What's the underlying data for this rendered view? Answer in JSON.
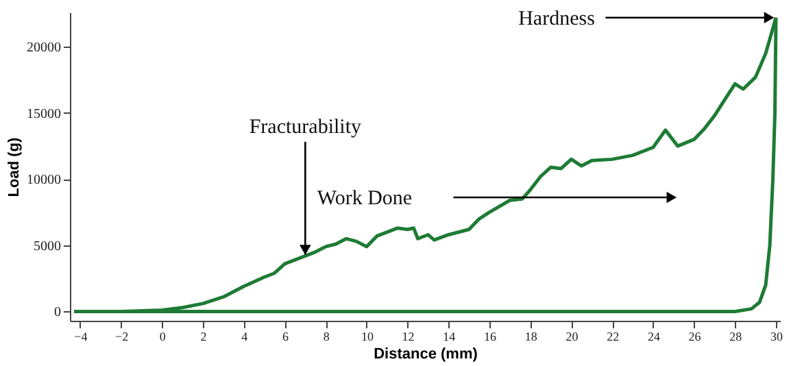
{
  "chart_data": {
    "type": "line",
    "xlabel": "Distance (mm)",
    "ylabel": "Load (g)",
    "xlim": [
      -4.5,
      30.2
    ],
    "ylim": [
      -700,
      22600
    ],
    "xticks": [
      -4,
      -2,
      0,
      2,
      4,
      6,
      8,
      10,
      12,
      14,
      16,
      18,
      20,
      22,
      24,
      26,
      28,
      30
    ],
    "yticks": [
      0,
      5000,
      10000,
      15000,
      20000
    ],
    "grid": false,
    "line_style": "solid",
    "annotations": [
      {
        "text": "Hardness",
        "x": 30,
        "y": 22200
      },
      {
        "text": "Fracturability",
        "x": 7,
        "y": 4200
      },
      "Work Done"
    ],
    "series": [
      {
        "color": "#1e7b34",
        "x": [
          -4.3,
          -2,
          0,
          1,
          2,
          3,
          4,
          5,
          5.5,
          6,
          6.5,
          7,
          7.5,
          8,
          8.5,
          9,
          9.5,
          10,
          10.5,
          11,
          11.5,
          12,
          12.3,
          12.5,
          13,
          13.3,
          14,
          15,
          15.5,
          16,
          17,
          17.6,
          18,
          18.5,
          19,
          19.5,
          20,
          20.5,
          21,
          22,
          23,
          24,
          24.6,
          25.2,
          26,
          26.5,
          27,
          27.5,
          28,
          28.4,
          29,
          29.5,
          30
        ],
        "values": [
          0,
          0,
          100,
          300,
          600,
          1100,
          1900,
          2600,
          2900,
          3600,
          3900,
          4200,
          4500,
          4900,
          5100,
          5500,
          5300,
          4900,
          5700,
          6000,
          6300,
          6200,
          6300,
          5500,
          5800,
          5400,
          5800,
          6200,
          7000,
          7500,
          8400,
          8500,
          9200,
          10200,
          10900,
          10800,
          11500,
          11000,
          11400,
          11500,
          11800,
          12400,
          13700,
          12500,
          13000,
          13800,
          14800,
          16000,
          17200,
          16800,
          17700,
          19500,
          22200
        ]
      },
      {
        "color": "#1e7b34",
        "x": [
          30,
          29.95,
          29.85,
          29.7,
          29.5,
          29.2,
          28.8,
          28,
          20,
          10,
          0,
          -4.3
        ],
        "values": [
          22200,
          15000,
          10000,
          5000,
          2000,
          700,
          200,
          0,
          0,
          0,
          0,
          0
        ]
      }
    ]
  }
}
